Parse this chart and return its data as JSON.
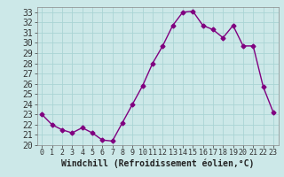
{
  "x": [
    0,
    1,
    2,
    3,
    4,
    5,
    6,
    7,
    8,
    9,
    10,
    11,
    12,
    13,
    14,
    15,
    16,
    17,
    18,
    19,
    20,
    21,
    22,
    23
  ],
  "y": [
    23.0,
    22.0,
    21.5,
    21.2,
    21.7,
    21.2,
    20.5,
    20.4,
    22.2,
    24.0,
    25.8,
    28.0,
    29.7,
    31.7,
    33.0,
    33.1,
    31.7,
    31.3,
    30.5,
    31.7,
    29.7,
    29.7,
    25.7,
    23.2
  ],
  "line_color": "#800080",
  "marker": "D",
  "marker_size": 2.5,
  "bg_color": "#cce8e8",
  "grid_color": "#aad4d4",
  "xlabel": "Windchill (Refroidissement éolien,°C)",
  "xlabel_fontsize": 7,
  "tick_fontsize": 7,
  "ylim": [
    20,
    33.5
  ],
  "yticks": [
    20,
    21,
    22,
    23,
    24,
    25,
    26,
    27,
    28,
    29,
    30,
    31,
    32,
    33
  ],
  "xlim": [
    -0.5,
    23.5
  ],
  "xticks": [
    0,
    1,
    2,
    3,
    4,
    5,
    6,
    7,
    8,
    9,
    10,
    11,
    12,
    13,
    14,
    15,
    16,
    17,
    18,
    19,
    20,
    21,
    22,
    23
  ]
}
